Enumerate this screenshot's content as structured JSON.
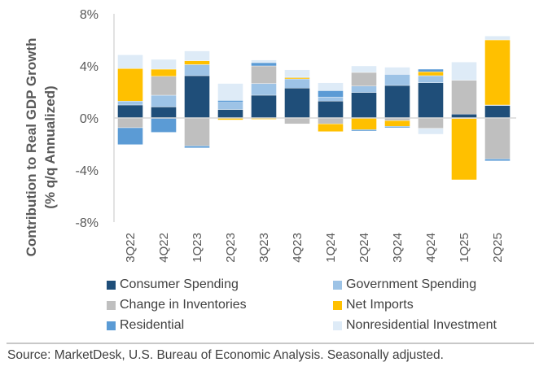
{
  "chart_data": {
    "type": "bar",
    "stacked": true,
    "title": "",
    "ylabel": "Contribution to Real GDP Growth",
    "ylabel_sub": "(% q/q Annualized)",
    "xlabel": "",
    "ylim": [
      -8,
      8
    ],
    "yticks": [
      8,
      4,
      0,
      -4,
      -8
    ],
    "ytick_labels": [
      "8%",
      "4%",
      "0%",
      "-4%",
      "-8%"
    ],
    "grid": false,
    "legend_position": "bottom",
    "categories": [
      "3Q22",
      "4Q22",
      "1Q23",
      "2Q23",
      "3Q23",
      "4Q23",
      "1Q24",
      "2Q24",
      "3Q24",
      "4Q24",
      "1Q25",
      "2Q25"
    ],
    "series": [
      {
        "name": "Consumer Spending",
        "color": "#1F4E79",
        "values": [
          1.0,
          0.85,
          3.25,
          0.65,
          1.75,
          2.3,
          1.3,
          1.95,
          2.5,
          2.7,
          0.3,
          0.95
        ]
      },
      {
        "name": "Government Spending",
        "color": "#9DC3E6",
        "values": [
          0.3,
          0.9,
          0.85,
          0.55,
          0.9,
          0.7,
          0.3,
          0.5,
          0.85,
          0.55,
          -0.05,
          0.05
        ]
      },
      {
        "name": "Change in Inventories",
        "color": "#BFBFBF",
        "values": [
          -0.75,
          1.45,
          -2.15,
          0.0,
          1.35,
          -0.45,
          -0.45,
          1.05,
          -0.2,
          -0.8,
          2.6,
          -3.15
        ]
      },
      {
        "name": "Net Imports",
        "color": "#FFC000",
        "values": [
          2.5,
          0.55,
          0.3,
          -0.15,
          -0.1,
          0.1,
          -0.6,
          -0.9,
          -0.45,
          0.3,
          -4.7,
          5.0
        ]
      },
      {
        "name": "Residential",
        "color": "#5B9BD5",
        "values": [
          -1.3,
          -1.1,
          -0.15,
          0.15,
          0.25,
          0.05,
          0.5,
          -0.1,
          -0.1,
          0.2,
          0.0,
          -0.15
        ]
      },
      {
        "name": "Nonresidential Investment",
        "color": "#DEEBF7",
        "values": [
          1.05,
          0.75,
          0.75,
          1.3,
          0.2,
          0.55,
          0.6,
          0.5,
          0.55,
          -0.45,
          1.4,
          0.3
        ]
      }
    ]
  },
  "legend": [
    {
      "label": "Consumer Spending",
      "color": "#1F4E79"
    },
    {
      "label": "Government Spending",
      "color": "#9DC3E6"
    },
    {
      "label": "Change in Inventories",
      "color": "#BFBFBF"
    },
    {
      "label": "Net Imports",
      "color": "#FFC000"
    },
    {
      "label": "Residential",
      "color": "#5B9BD5"
    },
    {
      "label": "Nonresidential Investment",
      "color": "#DEEBF7"
    }
  ],
  "footer": {
    "source": "Source: MarketDesk, U.S. Bureau of Economic Analysis. Seasonally adjusted."
  },
  "colors": {
    "axis": "#D9D9D9",
    "text": "#595959"
  }
}
